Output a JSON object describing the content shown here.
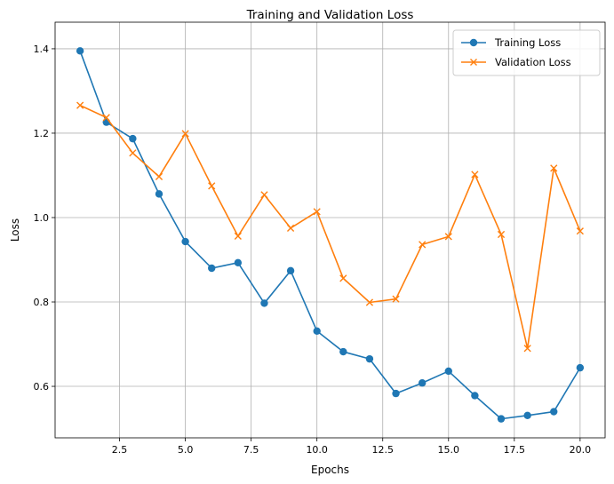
{
  "chart_data": {
    "type": "line",
    "title": "Training and Validation Loss",
    "xlabel": "Epochs",
    "ylabel": "Loss",
    "x": [
      1,
      2,
      3,
      4,
      5,
      6,
      7,
      8,
      9,
      10,
      11,
      12,
      13,
      14,
      15,
      16,
      17,
      18,
      19,
      20
    ],
    "xlim": [
      0.05,
      20.95
    ],
    "ylim": [
      0.478,
      1.463
    ],
    "xticks": [
      2.5,
      5.0,
      7.5,
      10.0,
      12.5,
      15.0,
      17.5,
      20.0
    ],
    "xtick_labels": [
      "2.5",
      "5.0",
      "7.5",
      "10.0",
      "12.5",
      "15.0",
      "17.5",
      "20.0"
    ],
    "yticks": [
      0.6,
      0.8,
      1.0,
      1.2,
      1.4
    ],
    "ytick_labels": [
      "0.6",
      "0.8",
      "1.0",
      "1.2",
      "1.4"
    ],
    "grid": true,
    "legend_position": "top-right",
    "series": [
      {
        "name": "Training Loss",
        "marker": "circle",
        "color": "#1f77b4",
        "values": [
          1.395,
          1.226,
          1.187,
          1.056,
          0.943,
          0.88,
          0.893,
          0.797,
          0.874,
          0.731,
          0.682,
          0.665,
          0.583,
          0.608,
          0.636,
          0.578,
          0.523,
          0.531,
          0.54,
          0.644
        ]
      },
      {
        "name": "Validation Loss",
        "marker": "x",
        "color": "#ff7f0e",
        "values": [
          1.266,
          1.237,
          1.153,
          1.097,
          1.199,
          1.075,
          0.956,
          1.054,
          0.975,
          1.014,
          0.856,
          0.799,
          0.807,
          0.936,
          0.955,
          1.102,
          0.96,
          0.69,
          1.117,
          0.968
        ]
      }
    ]
  }
}
